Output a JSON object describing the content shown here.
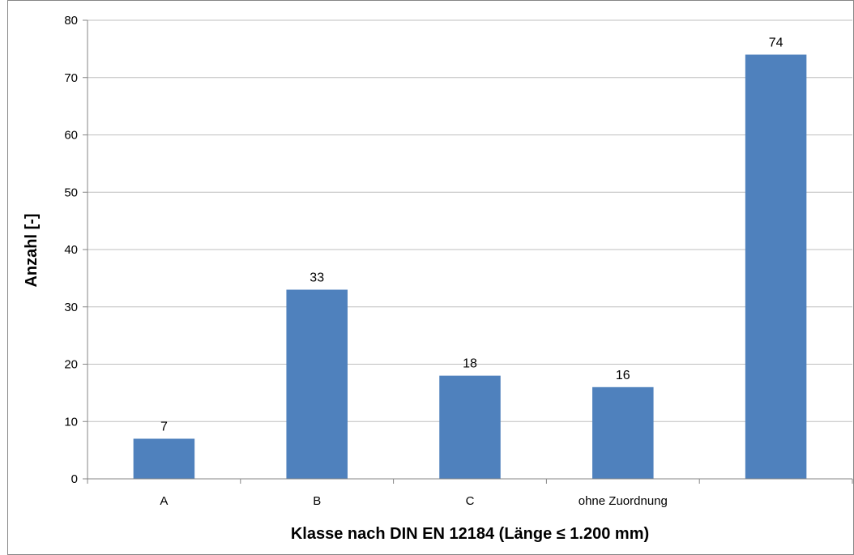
{
  "chart_data": {
    "type": "bar",
    "categories": [
      "A",
      "B",
      "C",
      "ohne Zuordnung",
      ""
    ],
    "values": [
      7,
      33,
      18,
      16,
      74
    ],
    "title": "",
    "xlabel": "Klasse nach DIN EN 12184 (Länge ≤ 1.200 mm)",
    "ylabel": "Anzahl [-]",
    "ylim": [
      0,
      80
    ],
    "yticks": [
      0,
      10,
      20,
      30,
      40,
      50,
      60,
      70,
      80
    ],
    "grid": true,
    "legend": "none",
    "colors": {
      "bar": "#4f81bd",
      "grid": "#bfbfbf",
      "axis": "#868686",
      "border": "#868686"
    }
  }
}
